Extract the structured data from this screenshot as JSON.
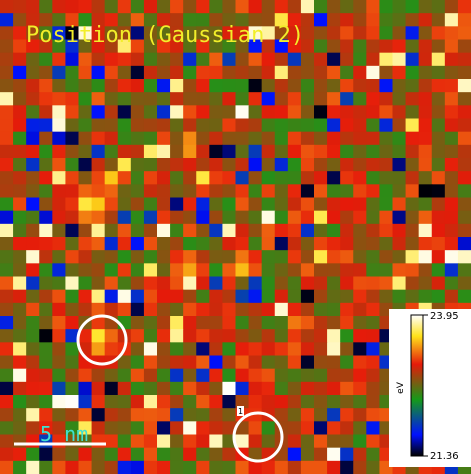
{
  "title": "Position (Gaussian 2)",
  "scale_bar": {
    "label": "5 nm"
  },
  "marker_label": "1",
  "colorbar": {
    "max": 23.95,
    "min": 21.36,
    "unit": "eV"
  }
}
